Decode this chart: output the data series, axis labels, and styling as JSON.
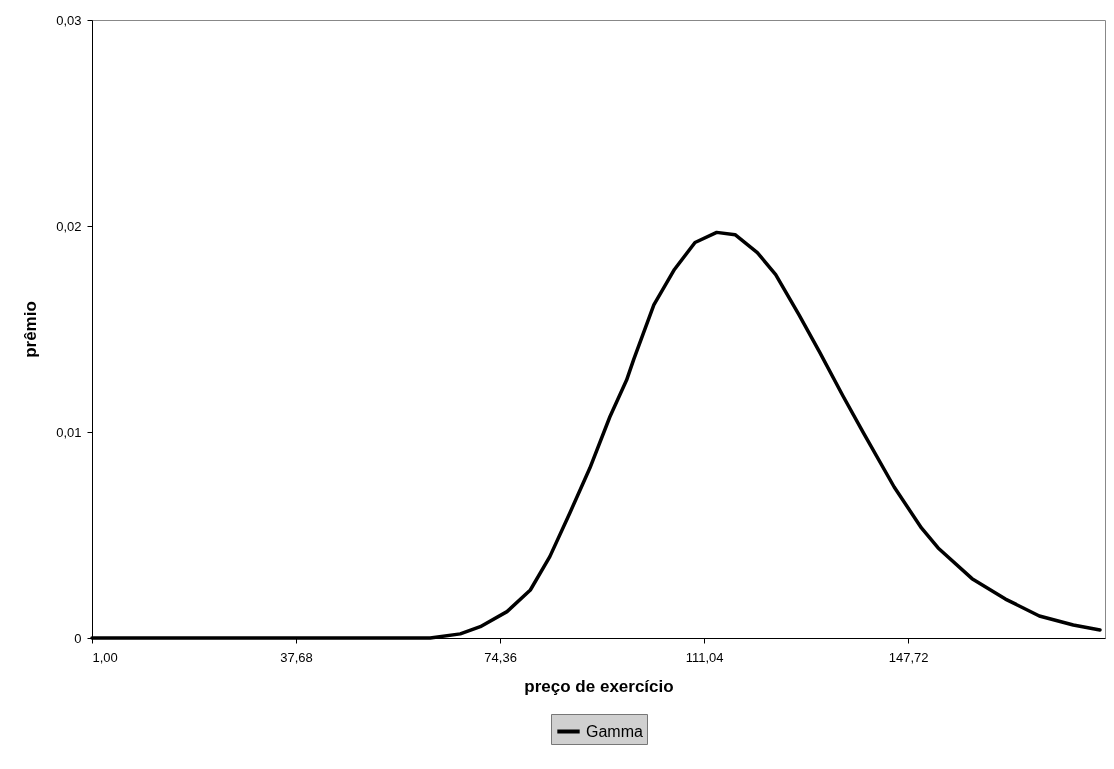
{
  "chart_data": {
    "type": "line",
    "xlabel": "preço de exercício",
    "ylabel": "prêmio",
    "xlim": [
      1,
      183.1
    ],
    "ylim": [
      0,
      0.03
    ],
    "xticks": [
      {
        "value": 1,
        "label": "1,00"
      },
      {
        "value": 37.68,
        "label": "37,68"
      },
      {
        "value": 74.36,
        "label": "74,36"
      },
      {
        "value": 111.04,
        "label": "111,04"
      },
      {
        "value": 147.72,
        "label": "147,72"
      }
    ],
    "yticks": [
      {
        "value": 0,
        "label": "0"
      },
      {
        "value": 0.01,
        "label": "0,01"
      },
      {
        "value": 0.02,
        "label": "0,02"
      },
      {
        "value": 0.03,
        "label": "0,03"
      }
    ],
    "legend": "bottom",
    "grid": false,
    "series": [
      {
        "name": "Gamma",
        "color": "#000000",
        "x": [
          1,
          20,
          40,
          52.8,
          61.8,
          67.2,
          70.8,
          75.6,
          79.8,
          83.3,
          86.9,
          90.5,
          94.1,
          97.1,
          98.4,
          102.0,
          105.7,
          109.4,
          113.3,
          116.6,
          120.6,
          123.9,
          128.1,
          131.8,
          136.0,
          139.7,
          145.2,
          150.1,
          153.1,
          159.2,
          165.2,
          171.3,
          177.4,
          182.2
        ],
        "values": [
          0,
          0,
          0,
          0,
          0,
          0.0002,
          0.00055,
          0.00128,
          0.00233,
          0.00395,
          0.00607,
          0.00825,
          0.01074,
          0.01252,
          0.01354,
          0.01617,
          0.01789,
          0.0192,
          0.01969,
          0.01958,
          0.01871,
          0.01764,
          0.01568,
          0.01388,
          0.01175,
          0.00995,
          0.00733,
          0.00534,
          0.00437,
          0.00288,
          0.00189,
          0.00107,
          0.00063,
          0.00039
        ]
      }
    ]
  }
}
